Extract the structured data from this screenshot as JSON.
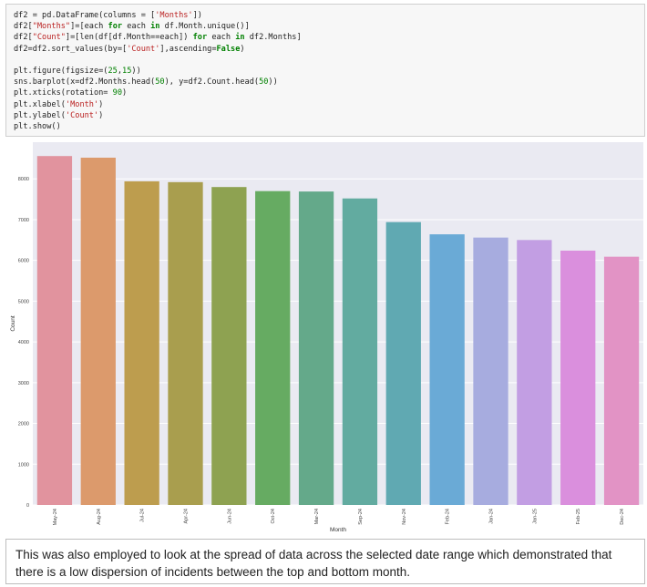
{
  "code": {
    "lines": [
      "df2 = pd.DataFrame(columns = ['Months'])",
      "df2[\"Months\"]=[each for each in df.Month.unique()]",
      "df2[\"Count\"]=[len(df[df.Month==each]) for each in df2.Months]",
      "df2=df2.sort_values(by=['Count'],ascending=False)",
      "",
      "plt.figure(figsize=(25,15))",
      "sns.barplot(x=df2.Months.head(50), y=df2.Count.head(50))",
      "plt.xticks(rotation= 90)",
      "plt.xlabel('Month')",
      "plt.ylabel('Count')",
      "plt.show()"
    ]
  },
  "chart_data": {
    "type": "bar",
    "title": "",
    "xlabel": "Month",
    "ylabel": "Count",
    "categories": [
      "May-24",
      "Aug-24",
      "Jul-24",
      "Apr-24",
      "Jun-24",
      "Oct-24",
      "Mar-24",
      "Sep-24",
      "Nov-24",
      "Feb-24",
      "Jan-24",
      "Jan-25",
      "Feb-25",
      "Dec-24"
    ],
    "values": [
      8560,
      8520,
      7940,
      7920,
      7800,
      7700,
      7690,
      7520,
      6940,
      6640,
      6560,
      6500,
      6240,
      6090
    ],
    "ylim": [
      0,
      8900
    ],
    "yticks": [
      0,
      1000,
      2000,
      3000,
      4000,
      5000,
      6000,
      7000,
      8000
    ],
    "xtick_rotation": 90,
    "grid": true,
    "colors": [
      "#e1939e",
      "#dc9a6c",
      "#bd9d4e",
      "#a99e4e",
      "#8ea251",
      "#66ab62",
      "#64a98a",
      "#62aba0",
      "#60a9b2",
      "#6aaad6",
      "#a7acdf",
      "#c29ee3",
      "#da8fdd",
      "#e293c5"
    ]
  },
  "caption": {
    "text": "This was also employed to look at the spread of data across the selected date range which demonstrated that there is a low dispersion of incidents between the top and bottom month."
  }
}
